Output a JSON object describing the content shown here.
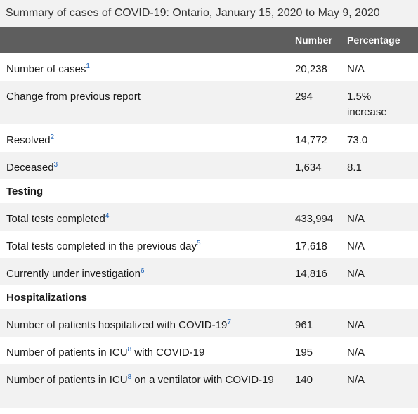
{
  "caption": "Summary of cases of COVID-19: Ontario, January 15, 2020 to May 9, 2020",
  "columns": {
    "label": "",
    "number": "Number",
    "percentage": "Percentage"
  },
  "rows": [
    {
      "label": "Number of cases",
      "footnote": "1",
      "number": "20,238",
      "percentage": "N/A"
    },
    {
      "label": "Change from previous report",
      "footnote": "",
      "number": "294",
      "percentage": "1.5% increase"
    },
    {
      "label": "Resolved",
      "footnote": "2",
      "number": "14,772",
      "percentage": "73.0"
    },
    {
      "label": "Deceased",
      "footnote": "3",
      "number": "1,634",
      "percentage": "8.1"
    }
  ],
  "testing": {
    "heading": "Testing",
    "rows": [
      {
        "label": "Total tests completed",
        "footnote": "4",
        "number": "433,994",
        "percentage": "N/A"
      },
      {
        "label": "Total tests completed in the previous day",
        "footnote": "5",
        "number": "17,618",
        "percentage": "N/A"
      },
      {
        "label": "Currently under investigation",
        "footnote": "6",
        "number": "14,816",
        "percentage": "N/A"
      }
    ]
  },
  "hospitalizations": {
    "heading": "Hospitalizations",
    "rows": [
      {
        "label_a": "Number of patients hospitalized with COVID-19",
        "footnote": "7",
        "number": "961",
        "percentage": "N/A"
      },
      {
        "label_a": "Number of patients in ICU",
        "footnote": "8",
        "label_b": " with COVID-19",
        "number": "195",
        "percentage": "N/A"
      },
      {
        "label_a": "Number of patients in ICU",
        "footnote": "8",
        "label_b": " on a ventilator with COVID-19",
        "number": "140",
        "percentage": "N/A"
      }
    ]
  }
}
